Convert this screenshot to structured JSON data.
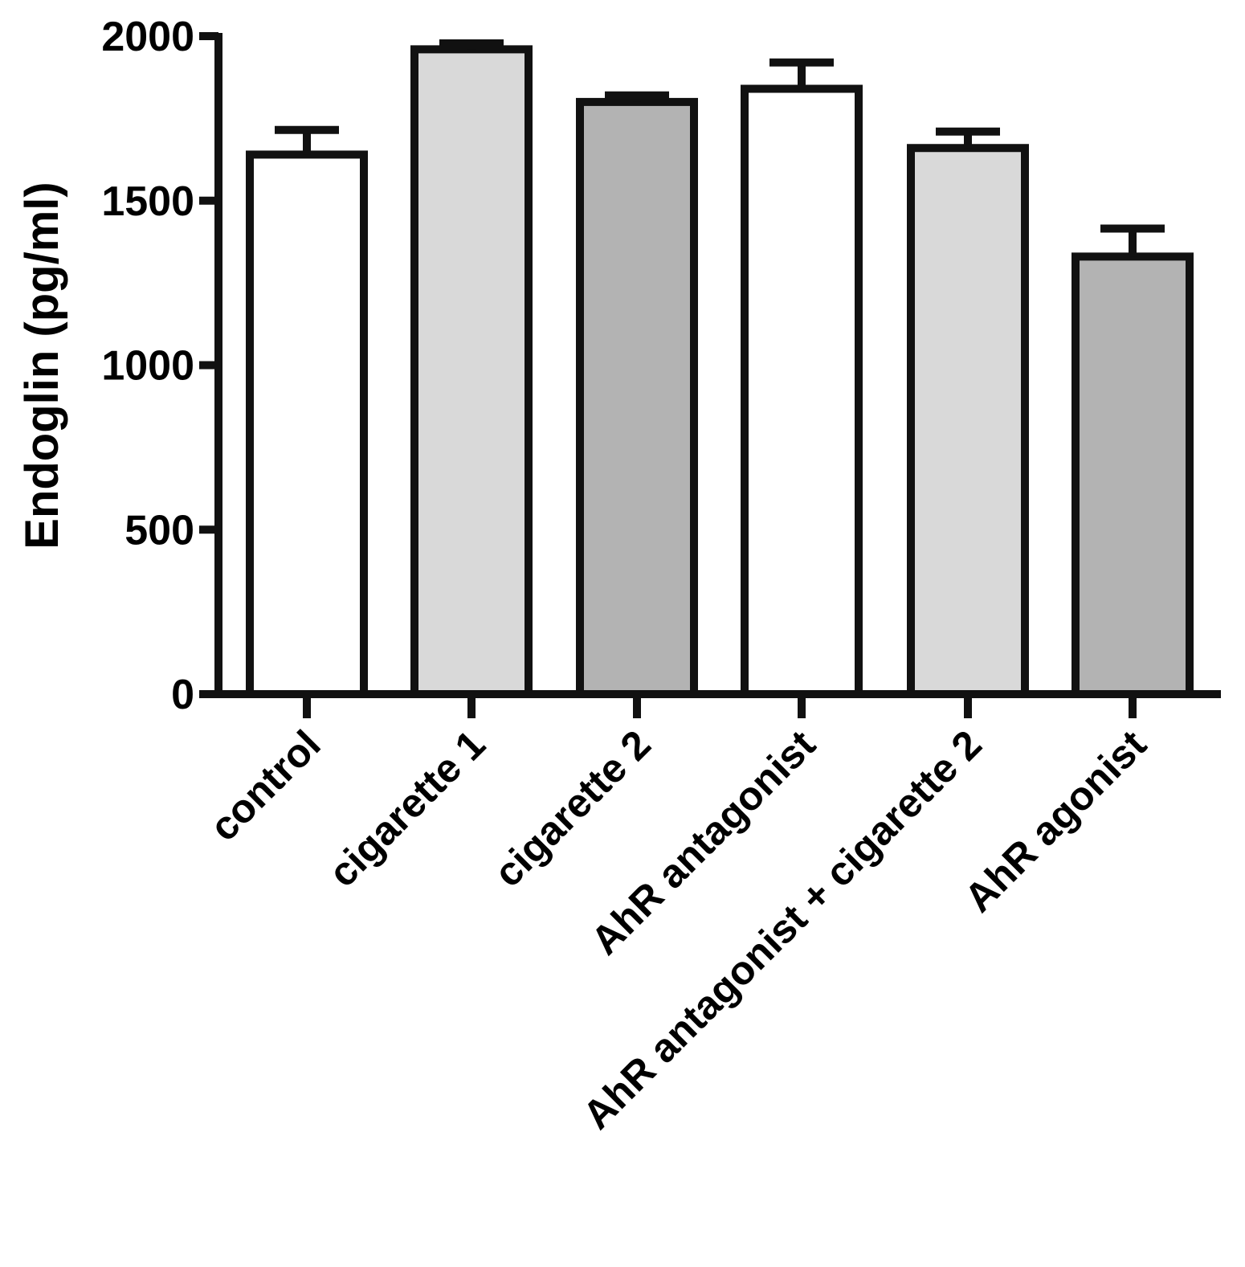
{
  "chart_data": {
    "type": "bar",
    "title": "",
    "xlabel": "",
    "ylabel": "Endoglin (pg/ml)",
    "ylim": [
      0,
      2000
    ],
    "yticks": [
      0,
      500,
      1000,
      1500,
      2000
    ],
    "ytick_labels": [
      "0",
      "500",
      "1000",
      "1500",
      "2000"
    ],
    "grid": false,
    "legend": "none",
    "error_bars": "upper",
    "categories": [
      "control",
      "cigarette 1",
      "cigarette 2",
      "AhR antagonist",
      "AhR antagonist + cigarette 2",
      "AhR agonist"
    ],
    "values": [
      1640,
      1960,
      1800,
      1840,
      1660,
      1330
    ],
    "errors": [
      75,
      18,
      20,
      80,
      50,
      85
    ],
    "bar_colors": [
      "#ffffff",
      "#d9d9d9",
      "#b3b3b3",
      "#ffffff",
      "#d9d9d9",
      "#b3b3b3"
    ],
    "stroke_color": "#111111"
  }
}
